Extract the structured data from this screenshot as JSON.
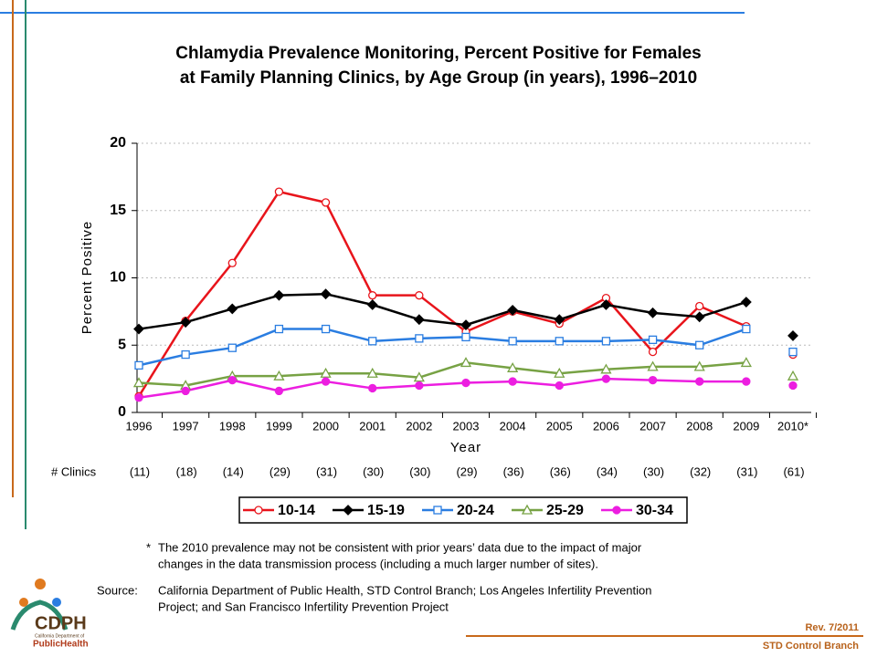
{
  "chart_data": {
    "type": "line",
    "title": [
      "Chlamydia Prevalence Monitoring, Percent Positive for Females",
      "at Family Planning Clinics, by Age Group (in years), 1996–2010"
    ],
    "x_label": "Year",
    "y_label": "Percent Positive",
    "categories": [
      "1996",
      "1997",
      "1998",
      "1999",
      "2000",
      "2001",
      "2002",
      "2003",
      "2004",
      "2005",
      "2006",
      "2007",
      "2008",
      "2009",
      "2010*"
    ],
    "ylim": [
      0,
      20
    ],
    "yticks": [
      0,
      5,
      10,
      15,
      20
    ],
    "grid": true,
    "series": [
      {
        "name": "10-14",
        "color": "#e8141b",
        "marker": "circle",
        "filled": false,
        "values": [
          1.2,
          6.8,
          11.1,
          16.4,
          15.6,
          8.7,
          8.7,
          6.0,
          7.5,
          6.6,
          8.5,
          4.5,
          7.9,
          6.4,
          4.3
        ]
      },
      {
        "name": "15-19",
        "color": "#000000",
        "marker": "diamond",
        "filled": true,
        "values": [
          6.2,
          6.7,
          7.7,
          8.7,
          8.8,
          8.0,
          6.9,
          6.5,
          7.6,
          6.9,
          8.0,
          7.4,
          7.1,
          8.2,
          5.7
        ]
      },
      {
        "name": "20-24",
        "color": "#2a7de1",
        "marker": "square",
        "filled": false,
        "values": [
          3.5,
          4.3,
          4.8,
          6.2,
          6.2,
          5.3,
          5.5,
          5.6,
          5.3,
          5.3,
          5.3,
          5.4,
          5.0,
          6.2,
          4.5
        ]
      },
      {
        "name": "25-29",
        "color": "#77a244",
        "marker": "triangle",
        "filled": false,
        "values": [
          2.2,
          2.0,
          2.7,
          2.7,
          2.9,
          2.9,
          2.6,
          3.7,
          3.3,
          2.9,
          3.2,
          3.4,
          3.4,
          3.7,
          2.7
        ]
      },
      {
        "name": "30-34",
        "color": "#ec1ee0",
        "marker": "circle",
        "filled": true,
        "values": [
          1.1,
          1.6,
          2.4,
          1.6,
          2.3,
          1.8,
          2.0,
          2.2,
          2.3,
          2.0,
          2.5,
          2.4,
          2.3,
          2.3,
          2.0
        ]
      }
    ],
    "clinics": {
      "label": "# Clinics",
      "values": [
        "(11)",
        "(18)",
        "(14)",
        "(29)",
        "(31)",
        "(30)",
        "(30)",
        "(29)",
        "(36)",
        "(36)",
        "(34)",
        "(30)",
        "(32)",
        "(31)",
        "(61)"
      ]
    }
  },
  "footnote": {
    "mark": "*",
    "lines": [
      "The 2010 prevalence may not be consistent with prior years’ data due to the impact of major",
      "changes in the data transmission process (including a much larger number of sites)."
    ]
  },
  "source": {
    "label": "Source:",
    "lines": [
      "California Department of Public Health, STD Control Branch; Los Angeles Infertility Prevention",
      "Project; and San Francisco Infertility Prevention Project"
    ]
  },
  "logo": {
    "name": "CDPH",
    "sub": "California Department of",
    "org": "PublicHealth"
  },
  "revision": "Rev. 7/2011",
  "branch": "STD Control Branch"
}
